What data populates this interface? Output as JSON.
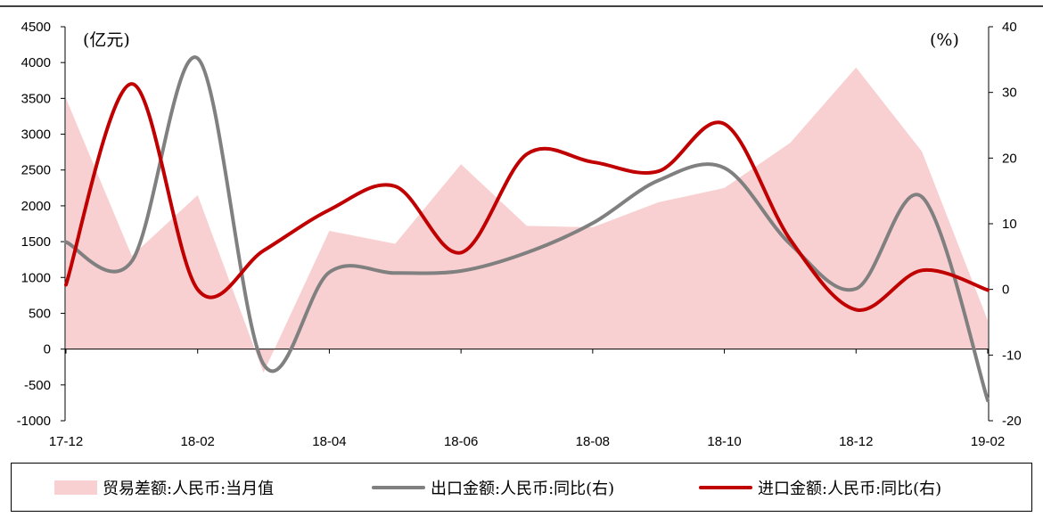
{
  "chart_data": {
    "type": "line",
    "left_unit": "(亿元)",
    "right_unit": "(%)",
    "x_labels": [
      "17-12",
      "18-02",
      "18-04",
      "18-06",
      "18-08",
      "18-10",
      "18-12",
      "19-02"
    ],
    "left_axis": {
      "ylim": [
        -1000,
        4500
      ],
      "ticks": [
        4500,
        4000,
        3500,
        3000,
        2500,
        2000,
        1500,
        1000,
        500,
        0,
        -500,
        -1000
      ]
    },
    "right_axis": {
      "ylim": [
        -20,
        40
      ],
      "ticks": [
        40,
        30,
        20,
        10,
        0,
        -10,
        -20
      ]
    },
    "series": [
      {
        "name": "贸易差额:人民币:当月值",
        "kind": "area",
        "axis": "left",
        "color": "#f9d0d1",
        "values": [
          3500,
          1300,
          2150,
          -330,
          1650,
          1470,
          2580,
          1720,
          1700,
          2050,
          2250,
          2880,
          3930,
          2760,
          400
        ]
      },
      {
        "name": "出口金额:人民币:同比(右)",
        "kind": "line",
        "axis": "right",
        "color": "#808080",
        "values": [
          7.2,
          4.3,
          35.2,
          -11.4,
          2.6,
          2.5,
          2.8,
          5.6,
          10.1,
          16.6,
          18.5,
          6.9,
          0.1,
          14.1,
          -16.9
        ]
      },
      {
        "name": "进口金额:人民币:同比(右)",
        "kind": "line",
        "axis": "right",
        "color": "#c00000",
        "values": [
          0.7,
          31.3,
          0.0,
          5.9,
          12.1,
          15.7,
          5.6,
          20.6,
          19.4,
          18.0,
          25.2,
          7.6,
          -3.1,
          2.9,
          -0.1
        ]
      }
    ]
  },
  "legend": {
    "area_label": "贸易差额:人民币:当月值",
    "export_label": "出口金额:人民币:同比(右)",
    "import_label": "进口金额:人民币:同比(右)"
  }
}
